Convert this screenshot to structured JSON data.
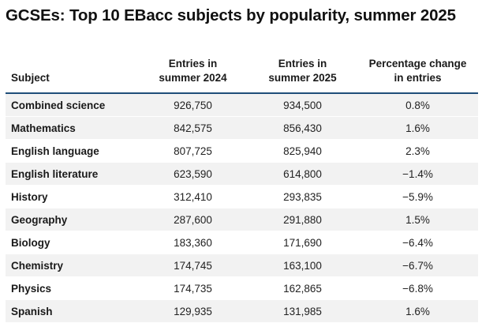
{
  "title": "GCSEs: Top 10 EBacc subjects by popularity, summer 2025",
  "table": {
    "headers": {
      "subject": "Subject",
      "entries_2024_line1": "Entries in",
      "entries_2024_line2": "summer 2024",
      "entries_2025_line1": "Entries in",
      "entries_2025_line2": "summer 2025",
      "change_line1": "Percentage change",
      "change_line2": "in entries"
    },
    "rows": [
      {
        "subject": "Combined science",
        "entries_2024": "926,750",
        "entries_2025": "934,500",
        "change": "0.8%"
      },
      {
        "subject": "Mathematics",
        "entries_2024": "842,575",
        "entries_2025": "856,430",
        "change": "1.6%"
      },
      {
        "subject": "English language",
        "entries_2024": "807,725",
        "entries_2025": "825,940",
        "change": "2.3%"
      },
      {
        "subject": "English literature",
        "entries_2024": "623,590",
        "entries_2025": "614,800",
        "change": "−1.4%"
      },
      {
        "subject": "History",
        "entries_2024": "312,410",
        "entries_2025": "293,835",
        "change": "−5.9%"
      },
      {
        "subject": "Geography",
        "entries_2024": "287,600",
        "entries_2025": "291,880",
        "change": "1.5%"
      },
      {
        "subject": "Biology",
        "entries_2024": "183,360",
        "entries_2025": "171,690",
        "change": "−6.4%"
      },
      {
        "subject": "Chemistry",
        "entries_2024": "174,745",
        "entries_2025": "163,100",
        "change": "−6.7%"
      },
      {
        "subject": "Physics",
        "entries_2024": "174,735",
        "entries_2025": "162,865",
        "change": "−6.8%"
      },
      {
        "subject": "Spanish",
        "entries_2024": "129,935",
        "entries_2025": "131,985",
        "change": "1.6%"
      }
    ]
  },
  "colors": {
    "header_rule": "#1f4e79",
    "row_shade": "#f2f2f2"
  }
}
